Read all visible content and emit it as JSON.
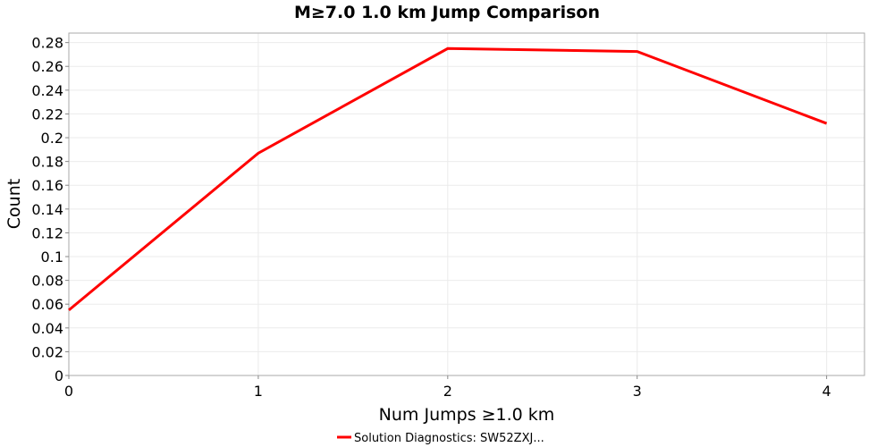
{
  "chart_data": {
    "type": "line",
    "title": "M≥7.0 1.0 km Jump Comparison",
    "xlabel": "Num Jumps ≥1.0 km",
    "ylabel": "Count",
    "xlim": [
      0,
      4.2
    ],
    "ylim": [
      0,
      0.288
    ],
    "grid": true,
    "x_ticks": [
      "0",
      "1",
      "2",
      "3",
      "4"
    ],
    "y_ticks": [
      "0",
      "0.02",
      "0.04",
      "0.06",
      "0.08",
      "0.1",
      "0.12",
      "0.14",
      "0.16",
      "0.18",
      "0.2",
      "0.22",
      "0.24",
      "0.26",
      "0.28"
    ],
    "legend_placement": "bottom",
    "series": [
      {
        "name": "Solution Diagnostics: SW52ZXJ...",
        "color": "#ff0000",
        "x": [
          0,
          1,
          2,
          3,
          4
        ],
        "y": [
          0.055,
          0.187,
          0.275,
          0.2725,
          0.212
        ]
      }
    ]
  }
}
